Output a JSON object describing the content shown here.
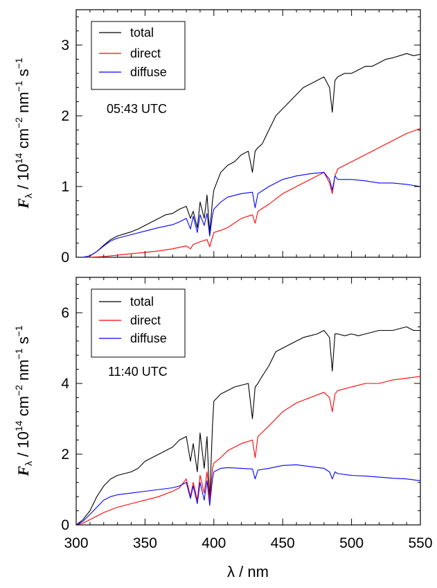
{
  "colors": {
    "total": "#000000",
    "direct": "#ff0000",
    "diffuse": "#0000ff"
  },
  "shared": {
    "xlabel": "λ / nm",
    "ylabel": {
      "symbol": "F",
      "subscript": "λ",
      "rest": " / 10",
      "exp": "14",
      "units1": " cm",
      "unitsExp1": "−2",
      "units2": " nm",
      "unitsExp2": "−1",
      "units3": " s",
      "unitsExp3": "−1"
    }
  },
  "chart_data": [
    {
      "type": "line",
      "annotation": "05:43 UTC",
      "xlim": [
        300,
        550
      ],
      "ylim": [
        0,
        3.5
      ],
      "xticks": [
        300,
        350,
        400,
        450,
        500,
        550
      ],
      "yticks": [
        0,
        1,
        2,
        3
      ],
      "ytick_labels": [
        "0",
        "1",
        "2",
        "3"
      ],
      "legend_placement": "top-left",
      "series": [
        {
          "name": "total",
          "color_key": "total",
          "x": [
            300,
            305,
            310,
            315,
            320,
            325,
            330,
            335,
            340,
            345,
            350,
            355,
            360,
            365,
            370,
            375,
            380,
            383,
            385,
            388,
            390,
            393,
            395,
            397,
            399,
            400,
            405,
            410,
            415,
            420,
            425,
            428,
            430,
            432,
            435,
            440,
            445,
            450,
            455,
            460,
            465,
            470,
            475,
            480,
            484,
            486,
            488,
            490,
            495,
            500,
            505,
            510,
            515,
            520,
            525,
            530,
            535,
            540,
            545,
            550
          ],
          "y": [
            0.0,
            0.0,
            0.02,
            0.08,
            0.17,
            0.25,
            0.3,
            0.33,
            0.36,
            0.4,
            0.45,
            0.5,
            0.55,
            0.6,
            0.62,
            0.68,
            0.72,
            0.55,
            0.65,
            0.42,
            0.78,
            0.55,
            0.88,
            0.35,
            0.8,
            0.95,
            1.2,
            1.3,
            1.35,
            1.45,
            1.5,
            1.2,
            1.5,
            1.55,
            1.6,
            1.8,
            2.0,
            2.1,
            2.2,
            2.3,
            2.4,
            2.45,
            2.5,
            2.55,
            2.4,
            2.05,
            2.5,
            2.55,
            2.6,
            2.6,
            2.65,
            2.7,
            2.7,
            2.75,
            2.8,
            2.82,
            2.85,
            2.88,
            2.85,
            2.87
          ]
        },
        {
          "name": "direct",
          "color_key": "direct",
          "x": [
            300,
            310,
            320,
            330,
            340,
            350,
            360,
            370,
            375,
            380,
            383,
            385,
            390,
            395,
            397,
            400,
            405,
            410,
            420,
            428,
            430,
            432,
            440,
            450,
            460,
            470,
            480,
            484,
            486,
            488,
            490,
            500,
            510,
            520,
            530,
            540,
            550
          ],
          "y": [
            0.0,
            0.0,
            0.01,
            0.03,
            0.05,
            0.07,
            0.09,
            0.12,
            0.14,
            0.16,
            0.12,
            0.18,
            0.22,
            0.25,
            0.15,
            0.35,
            0.38,
            0.42,
            0.55,
            0.6,
            0.48,
            0.65,
            0.75,
            0.9,
            1.0,
            1.1,
            1.2,
            1.05,
            0.9,
            1.15,
            1.25,
            1.35,
            1.45,
            1.55,
            1.65,
            1.75,
            1.82
          ]
        },
        {
          "name": "diffuse",
          "color_key": "diffuse",
          "x": [
            300,
            305,
            310,
            315,
            320,
            325,
            330,
            340,
            350,
            360,
            370,
            375,
            380,
            383,
            385,
            388,
            390,
            393,
            395,
            397,
            399,
            400,
            405,
            410,
            420,
            428,
            430,
            432,
            440,
            450,
            460,
            470,
            480,
            484,
            486,
            488,
            490,
            500,
            510,
            520,
            530,
            540,
            550
          ],
          "y": [
            0.0,
            0.0,
            0.02,
            0.08,
            0.16,
            0.23,
            0.27,
            0.32,
            0.37,
            0.42,
            0.46,
            0.5,
            0.55,
            0.4,
            0.58,
            0.35,
            0.6,
            0.45,
            0.62,
            0.3,
            0.6,
            0.68,
            0.78,
            0.85,
            0.9,
            0.92,
            0.7,
            0.9,
            1.0,
            1.1,
            1.15,
            1.18,
            1.2,
            1.1,
            0.95,
            1.15,
            1.1,
            1.1,
            1.08,
            1.05,
            1.05,
            1.03,
            1.0
          ]
        }
      ]
    },
    {
      "type": "line",
      "annotation": "11:40 UTC",
      "xlim": [
        300,
        550
      ],
      "ylim": [
        0,
        7
      ],
      "xticks": [
        300,
        350,
        400,
        450,
        500,
        550
      ],
      "xtick_labels": [
        "300",
        "350",
        "400",
        "450",
        "500",
        "550"
      ],
      "yticks": [
        0,
        2,
        4,
        6
      ],
      "ytick_labels": [
        "0",
        "2",
        "4",
        "6"
      ],
      "legend_placement": "top-left",
      "series": [
        {
          "name": "total",
          "color_key": "total",
          "x": [
            300,
            305,
            310,
            315,
            320,
            325,
            330,
            335,
            340,
            345,
            350,
            355,
            360,
            365,
            370,
            375,
            380,
            383,
            385,
            388,
            390,
            393,
            395,
            397,
            399,
            400,
            405,
            410,
            415,
            420,
            425,
            428,
            430,
            432,
            435,
            440,
            445,
            450,
            455,
            460,
            465,
            470,
            475,
            480,
            484,
            486,
            488,
            490,
            495,
            500,
            505,
            510,
            515,
            520,
            525,
            530,
            535,
            540,
            545,
            550
          ],
          "y": [
            0.0,
            0.15,
            0.4,
            0.8,
            1.1,
            1.3,
            1.4,
            1.45,
            1.5,
            1.6,
            1.8,
            1.9,
            2.0,
            2.1,
            2.2,
            2.4,
            2.5,
            1.8,
            2.3,
            1.5,
            2.6,
            1.6,
            2.5,
            0.7,
            2.8,
            3.5,
            3.7,
            3.8,
            3.9,
            3.95,
            4.0,
            3.0,
            3.9,
            4.0,
            4.2,
            4.5,
            4.9,
            5.0,
            5.1,
            5.2,
            5.3,
            5.35,
            5.4,
            5.5,
            5.3,
            4.35,
            5.4,
            5.4,
            5.35,
            5.4,
            5.35,
            5.4,
            5.45,
            5.5,
            5.5,
            5.5,
            5.55,
            5.6,
            5.5,
            5.5
          ]
        },
        {
          "name": "direct",
          "color_key": "direct",
          "x": [
            300,
            305,
            310,
            320,
            330,
            340,
            350,
            360,
            370,
            375,
            380,
            383,
            385,
            388,
            390,
            393,
            395,
            397,
            399,
            400,
            405,
            410,
            420,
            428,
            430,
            432,
            440,
            450,
            460,
            470,
            480,
            484,
            486,
            488,
            490,
            500,
            510,
            520,
            530,
            540,
            550
          ],
          "y": [
            0.0,
            0.05,
            0.15,
            0.35,
            0.5,
            0.6,
            0.7,
            0.8,
            0.95,
            1.05,
            1.3,
            0.8,
            1.2,
            0.7,
            1.4,
            0.9,
            1.5,
            0.7,
            1.6,
            1.75,
            1.9,
            2.1,
            2.3,
            2.4,
            1.9,
            2.5,
            2.8,
            3.2,
            3.45,
            3.6,
            3.75,
            3.6,
            3.2,
            3.7,
            3.8,
            3.9,
            4.0,
            4.0,
            4.1,
            4.15,
            4.2
          ]
        },
        {
          "name": "diffuse",
          "color_key": "diffuse",
          "x": [
            300,
            305,
            310,
            315,
            320,
            325,
            330,
            340,
            350,
            360,
            370,
            375,
            380,
            383,
            385,
            388,
            390,
            393,
            395,
            397,
            399,
            400,
            405,
            410,
            420,
            428,
            430,
            432,
            440,
            450,
            460,
            470,
            480,
            484,
            486,
            488,
            490,
            500,
            510,
            520,
            530,
            540,
            550
          ],
          "y": [
            0.0,
            0.1,
            0.3,
            0.5,
            0.7,
            0.8,
            0.85,
            0.9,
            0.95,
            1.0,
            1.05,
            1.1,
            1.2,
            0.75,
            1.1,
            0.6,
            1.2,
            0.7,
            1.25,
            0.55,
            1.3,
            1.5,
            1.6,
            1.62,
            1.6,
            1.58,
            1.3,
            1.55,
            1.6,
            1.68,
            1.7,
            1.65,
            1.6,
            1.5,
            1.3,
            1.5,
            1.45,
            1.4,
            1.38,
            1.35,
            1.32,
            1.3,
            1.25
          ]
        }
      ]
    }
  ]
}
